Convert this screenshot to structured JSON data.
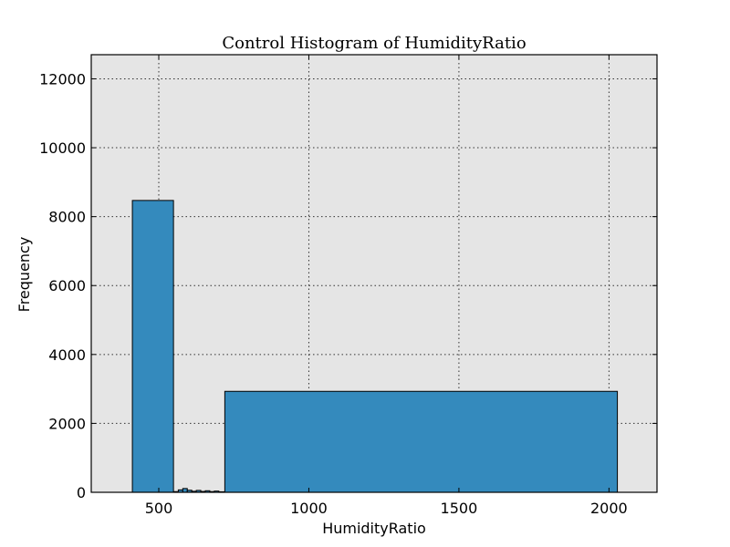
{
  "chart_data": {
    "type": "bar",
    "title": "Control Histogram of HumidityRatio",
    "xlabel": "HumidityRatio",
    "ylabel": "Frequency",
    "xlim": [
      275,
      2160
    ],
    "ylim": [
      0,
      12700
    ],
    "xticks": [
      500,
      1000,
      1500,
      2000
    ],
    "yticks": [
      0,
      2000,
      4000,
      6000,
      8000,
      10000,
      12000
    ],
    "grid": true,
    "bar_color": "#348abd",
    "plot_bg": "#e5e5e5",
    "bins": [
      {
        "x0": 412,
        "x1": 549,
        "value": 8470
      },
      {
        "x0": 549,
        "x1": 565,
        "value": 20
      },
      {
        "x0": 565,
        "x1": 580,
        "value": 70
      },
      {
        "x0": 580,
        "x1": 595,
        "value": 110
      },
      {
        "x0": 595,
        "x1": 610,
        "value": 60
      },
      {
        "x0": 610,
        "x1": 625,
        "value": 30
      },
      {
        "x0": 625,
        "x1": 640,
        "value": 55
      },
      {
        "x0": 640,
        "x1": 655,
        "value": 25
      },
      {
        "x0": 655,
        "x1": 670,
        "value": 45
      },
      {
        "x0": 670,
        "x1": 685,
        "value": 20
      },
      {
        "x0": 685,
        "x1": 700,
        "value": 35
      },
      {
        "x0": 700,
        "x1": 720,
        "value": 15
      },
      {
        "x0": 720,
        "x1": 2028,
        "value": 2930
      }
    ]
  }
}
